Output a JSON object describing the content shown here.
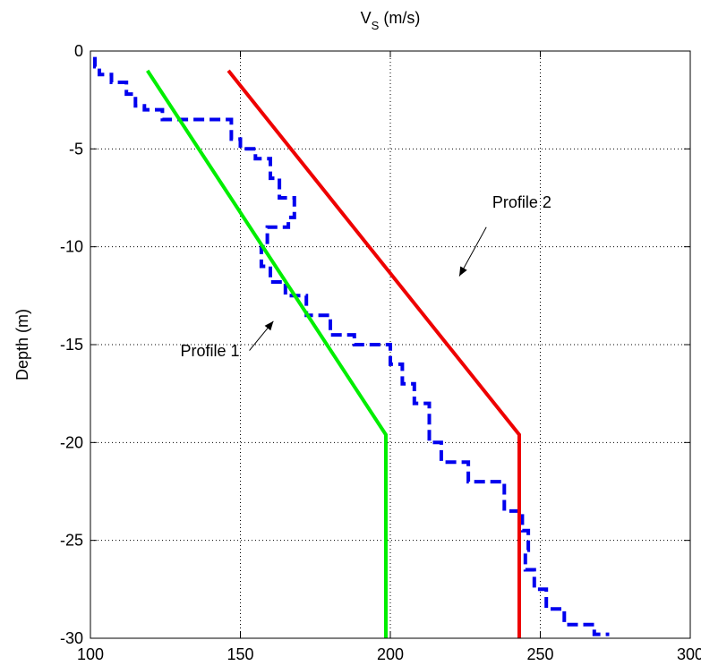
{
  "chart_data": {
    "type": "line",
    "xlabel": {
      "main": "V",
      "sub": "S",
      "unit": " (m/s)"
    },
    "ylabel": "Depth (m)",
    "xlim": [
      100,
      300
    ],
    "ylim": [
      -30,
      0
    ],
    "x_axis_position": "top",
    "grid": true,
    "xticks": [
      100,
      150,
      200,
      250,
      300
    ],
    "yticks": [
      0,
      -5,
      -10,
      -15,
      -20,
      -25,
      -30
    ],
    "series": [
      {
        "style": "dashed",
        "color": "#0000ee",
        "points": [
          [
            101.5,
            -0.3
          ],
          [
            101.5,
            -0.8
          ],
          [
            103,
            -0.8
          ],
          [
            103,
            -1.2
          ],
          [
            107,
            -1.2
          ],
          [
            107,
            -1.6
          ],
          [
            112,
            -1.6
          ],
          [
            112,
            -2.2
          ],
          [
            115,
            -2.2
          ],
          [
            115,
            -2.8
          ],
          [
            118,
            -2.8
          ],
          [
            118,
            -3.0
          ],
          [
            124,
            -3.0
          ],
          [
            124,
            -3.5
          ],
          [
            147,
            -3.5
          ],
          [
            147,
            -4.5
          ],
          [
            150,
            -4.5
          ],
          [
            150,
            -5.0
          ],
          [
            155,
            -5.0
          ],
          [
            155,
            -5.5
          ],
          [
            160,
            -5.5
          ],
          [
            160,
            -6.5
          ],
          [
            163,
            -6.5
          ],
          [
            163,
            -7.5
          ],
          [
            168,
            -7.5
          ],
          [
            168,
            -8.5
          ],
          [
            166,
            -8.5
          ],
          [
            166,
            -9.0
          ],
          [
            159,
            -9.0
          ],
          [
            159,
            -10.0
          ],
          [
            157,
            -10.0
          ],
          [
            157,
            -11.0
          ],
          [
            160,
            -11.0
          ],
          [
            160,
            -11.8
          ],
          [
            165,
            -11.8
          ],
          [
            165,
            -12.5
          ],
          [
            172,
            -12.5
          ],
          [
            172,
            -13.5
          ],
          [
            180,
            -13.5
          ],
          [
            180,
            -14.5
          ],
          [
            188,
            -14.5
          ],
          [
            188,
            -15.0
          ],
          [
            200,
            -15.0
          ],
          [
            200,
            -16.0
          ],
          [
            204,
            -16.0
          ],
          [
            204,
            -17.0
          ],
          [
            208,
            -17.0
          ],
          [
            208,
            -18.0
          ],
          [
            213,
            -18.0
          ],
          [
            213,
            -20.0
          ],
          [
            217,
            -20.0
          ],
          [
            217,
            -21.0
          ],
          [
            226,
            -21.0
          ],
          [
            226,
            -22.0
          ],
          [
            238,
            -22.0
          ],
          [
            238,
            -23.5
          ],
          [
            244,
            -23.5
          ],
          [
            244,
            -24.5
          ],
          [
            246,
            -24.5
          ],
          [
            246,
            -25.5
          ],
          [
            245,
            -25.5
          ],
          [
            245,
            -26.5
          ],
          [
            248,
            -26.5
          ],
          [
            248,
            -27.5
          ],
          [
            252,
            -27.5
          ],
          [
            252,
            -28.5
          ],
          [
            258,
            -28.5
          ],
          [
            258,
            -29.3
          ],
          [
            268,
            -29.3
          ],
          [
            268,
            -29.8
          ],
          [
            273,
            -29.8
          ]
        ]
      },
      {
        "name": "Profile 1",
        "style": "solid",
        "color": "#00ee00",
        "points": [
          [
            119,
            -1
          ],
          [
            198.5,
            -19.6
          ],
          [
            198.5,
            -30
          ]
        ]
      },
      {
        "name": "Profile 2",
        "style": "solid",
        "color": "#ee0000",
        "points": [
          [
            146,
            -1
          ],
          [
            243,
            -19.6
          ],
          [
            243,
            -30
          ]
        ]
      }
    ],
    "annotations": [
      {
        "text": "Profile 1",
        "text_at": [
          130,
          -15.6
        ],
        "arrow_from": [
          153,
          -15.3
        ],
        "arrow_to": [
          161,
          -13.8
        ]
      },
      {
        "text": "Profile 2",
        "text_at": [
          234,
          -8.0
        ],
        "arrow_from": [
          232,
          -9.0
        ],
        "arrow_to": [
          223,
          -11.5
        ]
      }
    ]
  }
}
